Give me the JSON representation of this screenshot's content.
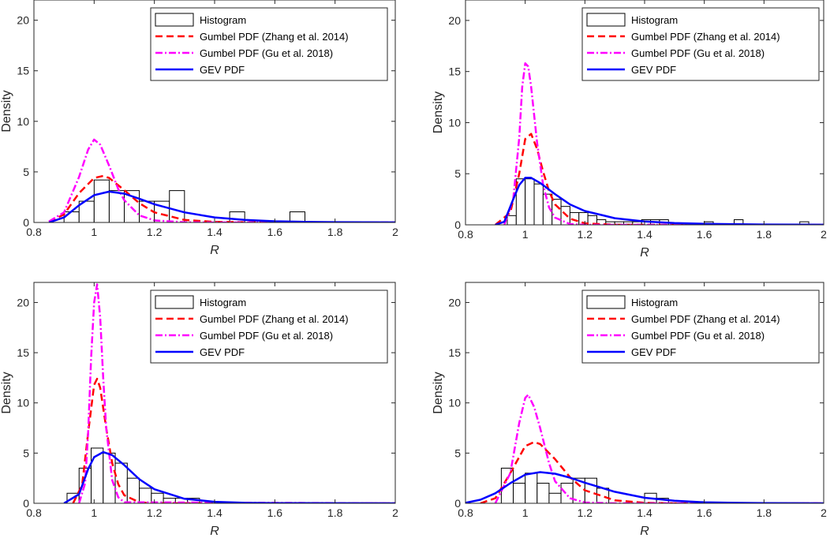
{
  "figure": {
    "layout": "2x2 grid of histogram + fitted PDF panels"
  },
  "colors": {
    "histogram_edge": "#000000",
    "histogram_fill": "#ffffff",
    "gumbel_zhang": "#ff0000",
    "gumbel_gu": "#ff00ff",
    "gev": "#0000ff",
    "axis": "#262626"
  },
  "chart_data": [
    {
      "type": "histogram+line",
      "title": "",
      "xlabel": "R",
      "ylabel": "Density",
      "xlim": [
        0.8,
        2
      ],
      "ylim": [
        0,
        22
      ],
      "xticks": [
        "0.8",
        "1",
        "1.2",
        "1.4",
        "1.6",
        "1.8",
        "2"
      ],
      "yticks": [
        "0",
        "5",
        "10",
        "15",
        "20"
      ],
      "legend": {
        "position": "top-right",
        "entries": [
          "Histogram",
          "Gumbel PDF (Zhang et al. 2014)",
          "Gumbel PDF (Gu et al. 2018)",
          "GEV PDF"
        ]
      },
      "histogram": {
        "bins": [
          [
            0.9,
            0.95
          ],
          [
            0.95,
            1.0
          ],
          [
            1.0,
            1.05
          ],
          [
            1.05,
            1.1
          ],
          [
            1.1,
            1.15
          ],
          [
            1.15,
            1.2
          ],
          [
            1.2,
            1.25
          ],
          [
            1.25,
            1.3
          ],
          [
            1.45,
            1.5
          ],
          [
            1.65,
            1.7
          ]
        ],
        "density": [
          1.05,
          2.1,
          4.2,
          3.15,
          3.15,
          2.1,
          2.1,
          3.15,
          1.05,
          1.05
        ]
      },
      "series": [
        {
          "name": "Gumbel PDF (Zhang et al. 2014)",
          "style": "dashed",
          "x": [
            0.85,
            0.9,
            0.95,
            1.0,
            1.03,
            1.05,
            1.1,
            1.15,
            1.2,
            1.3,
            1.4,
            1.5,
            1.6,
            2.0
          ],
          "y": [
            0.05,
            0.8,
            2.9,
            4.4,
            4.6,
            4.4,
            3.2,
            1.9,
            1.0,
            0.25,
            0.06,
            0.02,
            0.0,
            0.0
          ]
        },
        {
          "name": "Gumbel PDF (Gu et al. 2018)",
          "style": "dashdot",
          "x": [
            0.85,
            0.9,
            0.95,
            0.98,
            1.0,
            1.02,
            1.05,
            1.08,
            1.1,
            1.15,
            1.2,
            1.3,
            1.4,
            2.0
          ],
          "y": [
            0.1,
            1.0,
            4.5,
            7.2,
            8.2,
            7.7,
            5.6,
            3.3,
            2.2,
            0.7,
            0.2,
            0.02,
            0.0,
            0.0
          ]
        },
        {
          "name": "GEV PDF",
          "style": "solid",
          "x": [
            0.85,
            0.9,
            0.95,
            1.0,
            1.05,
            1.1,
            1.15,
            1.2,
            1.3,
            1.4,
            1.5,
            1.6,
            1.7,
            1.8,
            1.9,
            2.0
          ],
          "y": [
            0.0,
            0.5,
            1.7,
            2.7,
            3.05,
            2.85,
            2.35,
            1.8,
            1.0,
            0.5,
            0.25,
            0.12,
            0.06,
            0.03,
            0.015,
            0.01
          ]
        }
      ]
    },
    {
      "type": "histogram+line",
      "title": "",
      "xlabel": "R",
      "ylabel": "Density",
      "xlim": [
        0.8,
        2
      ],
      "ylim": [
        0,
        22
      ],
      "xticks": [
        "0.8",
        "1",
        "1.2",
        "1.4",
        "1.6",
        "1.8",
        "2"
      ],
      "yticks": [
        "0",
        "5",
        "10",
        "15",
        "20"
      ],
      "legend": {
        "position": "top-right",
        "entries": [
          "Histogram",
          "Gumbel PDF (Zhang et al. 2014)",
          "Gumbel PDF (Gu et al. 2018)",
          "GEV PDF"
        ]
      },
      "histogram": {
        "bins": [
          [
            0.94,
            0.97
          ],
          [
            0.97,
            1.0
          ],
          [
            1.0,
            1.03
          ],
          [
            1.03,
            1.06
          ],
          [
            1.06,
            1.09
          ],
          [
            1.09,
            1.12
          ],
          [
            1.12,
            1.15
          ],
          [
            1.15,
            1.18
          ],
          [
            1.18,
            1.21
          ],
          [
            1.21,
            1.24
          ],
          [
            1.24,
            1.27
          ],
          [
            1.27,
            1.3
          ],
          [
            1.3,
            1.33
          ],
          [
            1.33,
            1.36
          ],
          [
            1.36,
            1.39
          ],
          [
            1.39,
            1.42
          ],
          [
            1.42,
            1.45
          ],
          [
            1.45,
            1.48
          ],
          [
            1.6,
            1.63
          ],
          [
            1.7,
            1.73
          ],
          [
            1.92,
            1.95
          ]
        ],
        "density": [
          0.9,
          4.5,
          4.5,
          4.0,
          3.0,
          2.5,
          1.8,
          1.2,
          1.2,
          0.9,
          0.5,
          0.3,
          0.3,
          0.3,
          0.3,
          0.5,
          0.5,
          0.5,
          0.3,
          0.5,
          0.3
        ]
      },
      "series": [
        {
          "name": "Gumbel PDF (Zhang et al. 2014)",
          "style": "dashed",
          "x": [
            0.9,
            0.95,
            0.98,
            1.0,
            1.02,
            1.04,
            1.06,
            1.08,
            1.1,
            1.15,
            1.2,
            1.3,
            1.5,
            2.0
          ],
          "y": [
            0.0,
            1.2,
            5.0,
            8.4,
            8.9,
            7.4,
            5.2,
            3.3,
            2.0,
            0.6,
            0.15,
            0.01,
            0.0,
            0.0
          ]
        },
        {
          "name": "Gumbel PDF (Gu et al. 2018)",
          "style": "dashdot",
          "x": [
            0.93,
            0.96,
            0.98,
            0.99,
            1.0,
            1.01,
            1.02,
            1.04,
            1.06,
            1.08,
            1.1,
            1.15,
            1.2,
            2.0
          ],
          "y": [
            0.0,
            2.5,
            8.5,
            13.5,
            15.8,
            15.5,
            13.5,
            8.0,
            3.9,
            1.7,
            0.7,
            0.08,
            0.0,
            0.0
          ]
        },
        {
          "name": "GEV PDF",
          "style": "solid",
          "x": [
            0.9,
            0.93,
            0.96,
            0.98,
            1.0,
            1.02,
            1.05,
            1.1,
            1.15,
            1.2,
            1.3,
            1.4,
            1.5,
            1.6,
            1.8,
            2.0
          ],
          "y": [
            0.0,
            0.3,
            2.5,
            3.9,
            4.6,
            4.6,
            4.1,
            3.0,
            2.0,
            1.35,
            0.65,
            0.33,
            0.18,
            0.1,
            0.03,
            0.01
          ]
        }
      ]
    },
    {
      "type": "histogram+line",
      "title": "",
      "xlabel": "R",
      "ylabel": "Density",
      "xlim": [
        0.8,
        2
      ],
      "ylim": [
        0,
        22
      ],
      "xticks": [
        "0.8",
        "1",
        "1.2",
        "1.4",
        "1.6",
        "1.8",
        "2"
      ],
      "yticks": [
        "0",
        "5",
        "10",
        "15",
        "20"
      ],
      "legend": {
        "position": "top-right",
        "entries": [
          "Histogram",
          "Gumbel PDF (Zhang et al. 2014)",
          "Gumbel PDF (Gu et al. 2018)",
          "GEV PDF"
        ]
      },
      "histogram": {
        "bins": [
          [
            0.91,
            0.95
          ],
          [
            0.95,
            0.99
          ],
          [
            0.99,
            1.03
          ],
          [
            1.03,
            1.07
          ],
          [
            1.07,
            1.11
          ],
          [
            1.11,
            1.15
          ],
          [
            1.15,
            1.19
          ],
          [
            1.19,
            1.23
          ],
          [
            1.23,
            1.27
          ],
          [
            1.27,
            1.31
          ],
          [
            1.31,
            1.35
          ]
        ],
        "density": [
          1.0,
          3.5,
          5.5,
          5.0,
          4.0,
          2.5,
          1.5,
          1.0,
          0.5,
          0.5,
          0.5
        ]
      },
      "series": [
        {
          "name": "Gumbel PDF (Zhang et al. 2014)",
          "style": "dashed",
          "x": [
            0.93,
            0.96,
            0.98,
            1.0,
            1.01,
            1.02,
            1.04,
            1.06,
            1.08,
            1.1,
            1.15,
            1.2,
            2.0
          ],
          "y": [
            0.0,
            1.8,
            7.0,
            11.8,
            12.4,
            11.5,
            7.5,
            4.0,
            1.9,
            0.8,
            0.1,
            0.0,
            0.0
          ]
        },
        {
          "name": "Gumbel PDF (Gu et al. 2018)",
          "style": "dashdot",
          "x": [
            0.95,
            0.97,
            0.98,
            0.99,
            1.0,
            1.01,
            1.02,
            1.03,
            1.04,
            1.06,
            1.08,
            1.1,
            2.0
          ],
          "y": [
            0.0,
            2.0,
            7.0,
            14.5,
            20.0,
            21.8,
            18.5,
            12.5,
            7.5,
            2.3,
            0.6,
            0.1,
            0.0
          ]
        },
        {
          "name": "GEV PDF",
          "style": "solid",
          "x": [
            0.9,
            0.95,
            0.98,
            1.0,
            1.03,
            1.06,
            1.1,
            1.15,
            1.2,
            1.3,
            1.4,
            1.5,
            1.6,
            2.0
          ],
          "y": [
            0.0,
            0.9,
            3.4,
            4.6,
            5.1,
            4.8,
            3.8,
            2.4,
            1.4,
            0.45,
            0.15,
            0.05,
            0.02,
            0.0
          ]
        }
      ]
    },
    {
      "type": "histogram+line",
      "title": "",
      "xlabel": "R",
      "ylabel": "Density",
      "xlim": [
        0.8,
        2
      ],
      "ylim": [
        0,
        22
      ],
      "xticks": [
        "0.8",
        "1",
        "1.2",
        "1.4",
        "1.6",
        "1.8",
        "2"
      ],
      "yticks": [
        "0",
        "5",
        "10",
        "15",
        "20"
      ],
      "legend": {
        "position": "top-right",
        "entries": [
          "Histogram",
          "Gumbel PDF (Zhang et al. 2014)",
          "Gumbel PDF (Gu et al. 2018)",
          "GEV PDF"
        ]
      },
      "histogram": {
        "bins": [
          [
            0.92,
            0.96
          ],
          [
            0.96,
            1.0
          ],
          [
            1.0,
            1.04
          ],
          [
            1.04,
            1.08
          ],
          [
            1.08,
            1.12
          ],
          [
            1.12,
            1.16
          ],
          [
            1.16,
            1.2
          ],
          [
            1.2,
            1.24
          ],
          [
            1.24,
            1.28
          ],
          [
            1.4,
            1.44
          ],
          [
            1.44,
            1.48
          ]
        ],
        "density": [
          3.5,
          2.0,
          3.0,
          2.0,
          1.0,
          2.0,
          2.5,
          2.5,
          1.5,
          1.0,
          0.5
        ]
      },
      "series": [
        {
          "name": "Gumbel PDF (Zhang et al. 2014)",
          "style": "dashed",
          "x": [
            0.85,
            0.9,
            0.95,
            1.0,
            1.03,
            1.05,
            1.1,
            1.15,
            1.2,
            1.3,
            1.4,
            1.5,
            2.0
          ],
          "y": [
            0.0,
            0.5,
            3.0,
            5.7,
            6.1,
            5.9,
            4.4,
            2.6,
            1.3,
            0.3,
            0.05,
            0.0,
            0.0
          ]
        },
        {
          "name": "Gumbel PDF (Gu et al. 2018)",
          "style": "dashdot",
          "x": [
            0.9,
            0.95,
            0.98,
            1.0,
            1.01,
            1.03,
            1.05,
            1.08,
            1.1,
            1.15,
            1.2,
            1.3,
            2.0
          ],
          "y": [
            0.0,
            3.0,
            8.0,
            10.5,
            10.8,
            9.6,
            7.5,
            4.0,
            2.2,
            0.5,
            0.08,
            0.0,
            0.0
          ]
        },
        {
          "name": "GEV PDF",
          "style": "solid",
          "x": [
            0.8,
            0.85,
            0.9,
            0.95,
            1.0,
            1.05,
            1.1,
            1.15,
            1.2,
            1.3,
            1.4,
            1.5,
            1.6,
            1.7,
            1.8,
            2.0
          ],
          "y": [
            0.05,
            0.35,
            1.0,
            2.0,
            2.85,
            3.1,
            2.95,
            2.55,
            2.05,
            1.15,
            0.55,
            0.25,
            0.1,
            0.05,
            0.02,
            0.0
          ]
        }
      ]
    }
  ]
}
